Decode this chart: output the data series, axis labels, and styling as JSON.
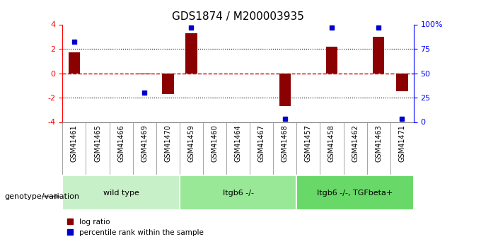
{
  "title": "GDS1874 / M200003935",
  "samples": [
    "GSM41461",
    "GSM41465",
    "GSM41466",
    "GSM41469",
    "GSM41470",
    "GSM41459",
    "GSM41460",
    "GSM41464",
    "GSM41467",
    "GSM41468",
    "GSM41457",
    "GSM41458",
    "GSM41462",
    "GSM41463",
    "GSM41471"
  ],
  "log_ratio": [
    1.7,
    0.0,
    0.0,
    -0.1,
    -1.7,
    3.3,
    0.0,
    0.0,
    0.0,
    -2.7,
    0.0,
    2.2,
    0.0,
    3.0,
    -1.5
  ],
  "percentile_rank": [
    82,
    null,
    null,
    30,
    null,
    97,
    null,
    null,
    null,
    3,
    null,
    97,
    null,
    97,
    3
  ],
  "groups": [
    {
      "label": "wild type",
      "start": 0,
      "end": 5,
      "color": "#c8f0c8"
    },
    {
      "label": "Itgb6 -/-",
      "start": 5,
      "end": 10,
      "color": "#98e898"
    },
    {
      "label": "Itgb6 -/-, TGFbeta+",
      "start": 10,
      "end": 15,
      "color": "#68d868"
    }
  ],
  "bar_color": "#8b0000",
  "dot_color": "#0000cd",
  "zero_line_color": "#cc0000",
  "dotted_line_color": "#000000",
  "bg_color": "#ffffff",
  "ylim": [
    -4,
    4
  ],
  "y2lim": [
    0,
    100
  ],
  "yticks": [
    -4,
    -2,
    0,
    2,
    4
  ],
  "y2ticks": [
    0,
    25,
    50,
    75,
    100
  ],
  "y2tick_labels": [
    "0",
    "25",
    "50",
    "75",
    "100%"
  ],
  "genotype_label": "genotype/variation",
  "legend_log_ratio": "log ratio",
  "legend_percentile": "percentile rank within the sample"
}
